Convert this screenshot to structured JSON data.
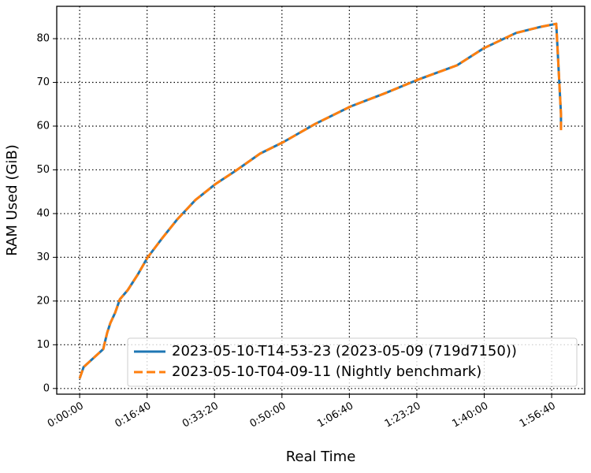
{
  "chart_data": {
    "type": "line",
    "xlabel": "Real Time",
    "ylabel": "RAM Used (GiB)",
    "x": [
      0,
      58,
      350,
      409,
      456,
      526,
      596,
      713,
      864,
      1005,
      1215,
      1449,
      1717,
      2009,
      2325,
      2675,
      3026,
      3493,
      4019,
      4544,
      5012,
      5596,
      5993,
      6472,
      6834,
      7068,
      7138,
      7138
    ],
    "series": [
      {
        "name": "2023-05-10-T14-53-23 (2023-05-09 (719d7150))",
        "color": "#1f77b4",
        "dash": "solid",
        "values": [
          2.3,
          4.9,
          9,
          12.8,
          15,
          17.3,
          20.4,
          22.5,
          26.1,
          29.9,
          34.2,
          38.7,
          43.1,
          46.7,
          49.9,
          53.7,
          56.4,
          60.5,
          64.5,
          67.6,
          70.6,
          73.9,
          77.8,
          81.3,
          82.7,
          83.4,
          62.7,
          59.5
        ]
      },
      {
        "name": "2023-05-10-T04-09-11 (Nightly benchmark)",
        "color": "#ff7f0e",
        "dash": "dashed",
        "values": [
          2.3,
          4.9,
          9,
          12.8,
          15,
          17.3,
          20.4,
          22.5,
          26.1,
          29.9,
          34.2,
          38.7,
          43.1,
          46.7,
          49.9,
          53.7,
          56.4,
          60.5,
          64.5,
          67.6,
          70.6,
          73.9,
          77.8,
          81.3,
          82.7,
          83.4,
          62.7,
          58.2
        ]
      }
    ],
    "xlim": [
      -340,
      7490
    ],
    "ylim": [
      -1.3,
      87.4
    ],
    "xticks": [
      {
        "value": 0,
        "label": "0:00:00"
      },
      {
        "value": 1000,
        "label": "0:16:40"
      },
      {
        "value": 2000,
        "label": "0:33:20"
      },
      {
        "value": 3000,
        "label": "0:50:00"
      },
      {
        "value": 4000,
        "label": "1:06:40"
      },
      {
        "value": 5000,
        "label": "1:23:20"
      },
      {
        "value": 6000,
        "label": "1:40:00"
      },
      {
        "value": 7000,
        "label": "1:56:40"
      }
    ],
    "yticks": [
      0,
      10,
      20,
      30,
      40,
      50,
      60,
      70,
      80
    ],
    "grid": true,
    "legend": "lower right"
  }
}
